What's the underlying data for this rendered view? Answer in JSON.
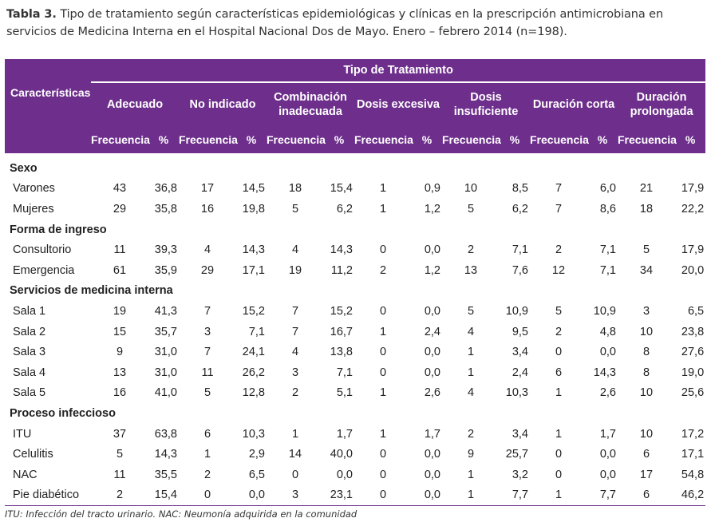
{
  "caption": {
    "label": "Tabla 3.",
    "text": "Tipo de tratamiento según características epidemiológicas y clínicas en la prescripción antimicrobiana en servicios de Medicina Interna en el Hospital Nacional Dos de Mayo. Enero – febrero 2014 (n=198)."
  },
  "header": {
    "characteristics": "Características",
    "group": "Tipo de Tratamiento",
    "types": [
      "Adecuado",
      "No indicado",
      "Combinación inadecuada",
      "Dosis excesiva",
      "Dosis insuficiente",
      "Duración corta",
      "Duración prolongada"
    ],
    "freq_label": "Frecuencia",
    "pct_label": "%"
  },
  "sections": [
    {
      "title": "Sexo",
      "rows": [
        {
          "label": "Varones",
          "values": [
            "43",
            "36,8",
            "17",
            "14,5",
            "18",
            "15,4",
            "1",
            "0,9",
            "10",
            "8,5",
            "7",
            "6,0",
            "21",
            "17,9"
          ]
        },
        {
          "label": "Mujeres",
          "values": [
            "29",
            "35,8",
            "16",
            "19,8",
            "5",
            "6,2",
            "1",
            "1,2",
            "5",
            "6,2",
            "7",
            "8,6",
            "18",
            "22,2"
          ]
        }
      ]
    },
    {
      "title": "Forma de ingreso",
      "rows": [
        {
          "label": "Consultorio",
          "values": [
            "11",
            "39,3",
            "4",
            "14,3",
            "4",
            "14,3",
            "0",
            "0,0",
            "2",
            "7,1",
            "2",
            "7,1",
            "5",
            "17,9"
          ]
        },
        {
          "label": "Emergencia",
          "values": [
            "61",
            "35,9",
            "29",
            "17,1",
            "19",
            "11,2",
            "2",
            "1,2",
            "13",
            "7,6",
            "12",
            "7,1",
            "34",
            "20,0"
          ]
        }
      ]
    },
    {
      "title": "Servicios de medicina interna",
      "rows": [
        {
          "label": "Sala 1",
          "values": [
            "19",
            "41,3",
            "7",
            "15,2",
            "7",
            "15,2",
            "0",
            "0,0",
            "5",
            "10,9",
            "5",
            "10,9",
            "3",
            "6,5"
          ]
        },
        {
          "label": "Sala 2",
          "values": [
            "15",
            "35,7",
            "3",
            "7,1",
            "7",
            "16,7",
            "1",
            "2,4",
            "4",
            "9,5",
            "2",
            "4,8",
            "10",
            "23,8"
          ]
        },
        {
          "label": "Sala 3",
          "values": [
            "9",
            "31,0",
            "7",
            "24,1",
            "4",
            "13,8",
            "0",
            "0,0",
            "1",
            "3,4",
            "0",
            "0,0",
            "8",
            "27,6"
          ]
        },
        {
          "label": "Sala 4",
          "values": [
            "13",
            "31,0",
            "11",
            "26,2",
            "3",
            "7,1",
            "0",
            "0,0",
            "1",
            "2,4",
            "6",
            "14,3",
            "8",
            "19,0"
          ]
        },
        {
          "label": "Sala 5",
          "values": [
            "16",
            "41,0",
            "5",
            "12,8",
            "2",
            "5,1",
            "1",
            "2,6",
            "4",
            "10,3",
            "1",
            "2,6",
            "10",
            "25,6"
          ]
        }
      ]
    },
    {
      "title": "Proceso infeccioso",
      "rows": [
        {
          "label": "ITU",
          "values": [
            "37",
            "63,8",
            "6",
            "10,3",
            "1",
            "1,7",
            "1",
            "1,7",
            "2",
            "3,4",
            "1",
            "1,7",
            "10",
            "17,2"
          ]
        },
        {
          "label": "Celulitis",
          "values": [
            "5",
            "14,3",
            "1",
            "2,9",
            "14",
            "40,0",
            "0",
            "0,0",
            "9",
            "25,7",
            "0",
            "0,0",
            "6",
            "17,1"
          ]
        },
        {
          "label": "NAC",
          "values": [
            "11",
            "35,5",
            "2",
            "6,5",
            "0",
            "0,0",
            "0",
            "0,0",
            "1",
            "3,2",
            "0",
            "0,0",
            "17",
            "54,8"
          ]
        },
        {
          "label": "Pie diabético",
          "values": [
            "2",
            "15,4",
            "0",
            "0,0",
            "3",
            "23,1",
            "0",
            "0,0",
            "1",
            "7,7",
            "1",
            "7,7",
            "6",
            "46,2"
          ]
        }
      ]
    }
  ],
  "footnote": "ITU: Infección del tracto urinario. NAC: Neumonía adquirida en la comunidad",
  "colors": {
    "header_bg": "#6e2f8c",
    "header_text": "#ffffff"
  }
}
